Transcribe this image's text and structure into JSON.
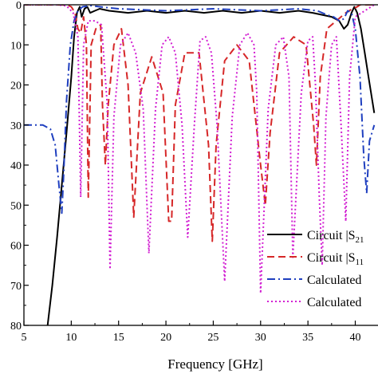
{
  "chart_data": {
    "type": "line",
    "xlabel": "Frequency [GHz]",
    "ylabel": "",
    "xlim": [
      5,
      42
    ],
    "ylim": [
      80,
      0
    ],
    "grid": false,
    "legend_placement": "bottom-right",
    "x_ticks": [
      "5",
      "10",
      "15",
      "20",
      "25",
      "30",
      "35",
      "40"
    ],
    "y_ticks": [
      "0",
      "10",
      "20",
      "30",
      "40",
      "50",
      "60",
      "70",
      "80"
    ],
    "series": [
      {
        "name": "Circuit |S21|",
        "legend_text": "Circuit |S",
        "legend_sub": "21",
        "color": "#000000",
        "dash": "",
        "x": [
          7.5,
          8.0,
          8.5,
          9.0,
          9.5,
          10.0,
          10.3,
          10.6,
          10.9,
          11.1,
          11.4,
          11.7,
          12.0,
          12.5,
          13.0,
          14.0,
          16.0,
          18.0,
          20.0,
          22.0,
          24.0,
          26.0,
          28.0,
          30.0,
          32.0,
          34.0,
          35.5,
          36.5,
          37.5,
          38.3,
          38.8,
          39.2,
          39.6,
          39.9,
          40.2,
          40.6,
          41.0,
          41.4,
          41.8,
          42.0
        ],
        "y": [
          80,
          70,
          58,
          45,
          32,
          18,
          8,
          2,
          0.5,
          3,
          1,
          0.5,
          2,
          1.5,
          1,
          1.5,
          2,
          1.5,
          2,
          1.5,
          2,
          1.5,
          2,
          1.5,
          2,
          1.5,
          2,
          2.5,
          3,
          4,
          6,
          5,
          2,
          0.5,
          2,
          6,
          12,
          18,
          24,
          27
        ]
      },
      {
        "name": "Circuit |S11|",
        "legend_text": "Circuit |S",
        "legend_sub": "11",
        "color": "#d62728",
        "dash": "9 5",
        "x": [
          5.0,
          9.5,
          10.0,
          10.4,
          10.7,
          11.0,
          11.3,
          11.6,
          11.8,
          12.1,
          12.6,
          13.1,
          13.3,
          13.6,
          13.9,
          14.5,
          15.3,
          16.0,
          16.6,
          17.3,
          18.5,
          19.7,
          20.3,
          20.6,
          21.0,
          22.0,
          23.5,
          24.5,
          24.9,
          25.3,
          26.2,
          27.5,
          28.8,
          30.0,
          30.5,
          31.0,
          32.0,
          33.5,
          34.8,
          35.6,
          35.9,
          36.3,
          37.0,
          38.0,
          39.0,
          39.7,
          40.2,
          40.5,
          41.0,
          42.0
        ],
        "y": [
          0,
          0,
          0.5,
          2,
          6,
          7,
          3,
          10,
          48,
          10,
          6,
          5,
          25,
          40,
          25,
          10,
          6,
          20,
          53,
          22,
          13,
          22,
          54,
          54,
          25,
          12,
          12,
          35,
          59,
          35,
          14,
          10,
          14,
          40,
          50,
          32,
          12,
          8,
          10,
          30,
          40,
          18,
          6,
          4,
          2,
          1,
          0.5,
          0,
          0,
          0
        ]
      },
      {
        "name": "Calculated",
        "legend_text": "Calculated",
        "legend_sub": "",
        "color": "#1f3fbf",
        "dash": "10 4 2 4",
        "x": [
          5.0,
          7.0,
          7.8,
          8.3,
          8.7,
          9.0,
          9.2,
          9.5,
          9.9,
          10.3,
          10.7,
          11.2,
          12.0,
          13.0,
          15.0,
          20.0,
          25.0,
          30.0,
          34.0,
          36.0,
          37.0,
          37.7,
          38.3,
          38.8,
          39.2,
          39.6,
          40.0,
          40.5,
          40.9,
          41.2,
          41.5,
          42.0
        ],
        "y": [
          30,
          30,
          31,
          35,
          45,
          52,
          42,
          24,
          10,
          4,
          1.5,
          0.5,
          0.2,
          0.5,
          1,
          1.5,
          1,
          1.5,
          1,
          1.5,
          2.5,
          3,
          4,
          3.5,
          1.5,
          2,
          6,
          18,
          38,
          47,
          34,
          30
        ]
      },
      {
        "name": "Calculated",
        "legend_text": "Calculated",
        "legend_sub": "",
        "color": "#d21fd2",
        "dash": "2 3",
        "x": [
          5.0,
          8.5,
          9.5,
          10.2,
          10.7,
          11.0,
          11.3,
          11.8,
          12.5,
          13.2,
          13.8,
          14.1,
          14.5,
          15.2,
          16.0,
          16.8,
          17.6,
          18.2,
          18.9,
          19.6,
          20.3,
          21.0,
          21.7,
          22.3,
          23.0,
          23.6,
          24.2,
          24.8,
          25.4,
          26.2,
          27.0,
          27.8,
          28.6,
          29.3,
          29.6,
          30.0,
          30.8,
          31.6,
          32.4,
          33.0,
          33.4,
          34.3,
          35.0,
          35.5,
          35.8,
          36.2,
          36.5,
          36.9,
          37.5,
          38.0,
          38.5,
          39.0,
          39.4,
          40.0,
          42.0
        ],
        "y": [
          0,
          0,
          0.3,
          2,
          8,
          48,
          10,
          4,
          4,
          5,
          25,
          66,
          28,
          10,
          7,
          12,
          26,
          62,
          26,
          10,
          8,
          12,
          30,
          58,
          30,
          9,
          8,
          12,
          30,
          69,
          28,
          10,
          7,
          10,
          22,
          72,
          26,
          10,
          8,
          18,
          63,
          22,
          9,
          8,
          20,
          48,
          65,
          28,
          10,
          8,
          30,
          54,
          18,
          3,
          0
        ]
      }
    ]
  }
}
